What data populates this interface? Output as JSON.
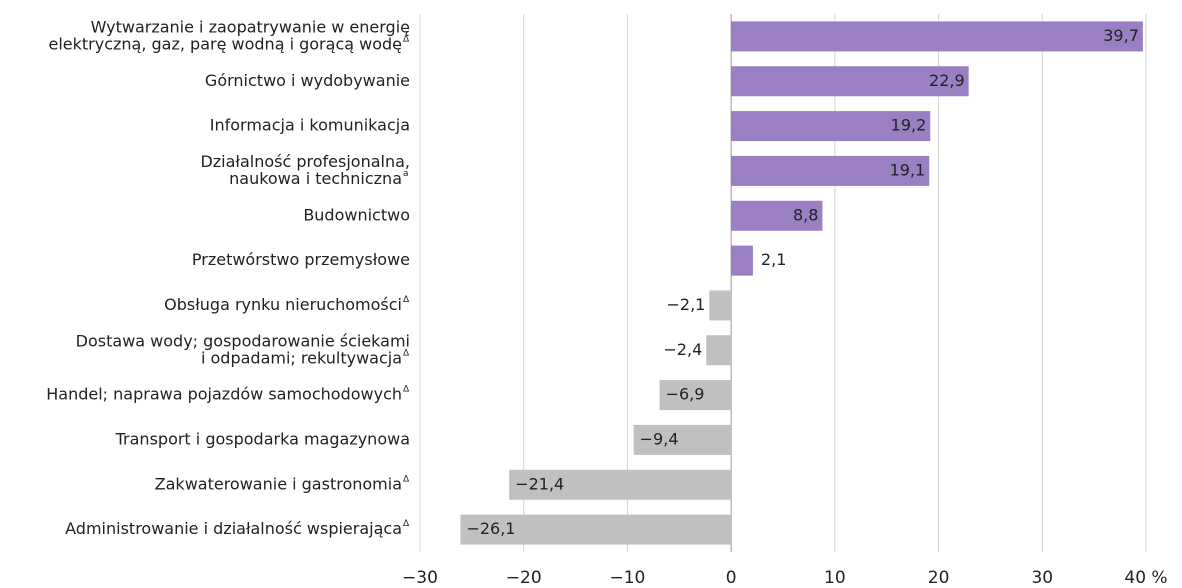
{
  "chart_data": {
    "type": "hbar",
    "categories": [
      [
        "Wytwarzanie i zaopatrywanie w energię",
        "elektryczną, gaz, parę wodną i gorącą wodę"
      ],
      [
        "Górnictwo i wydobywanie"
      ],
      [
        "Informacja i komunikacja"
      ],
      [
        "Działalność profesjonalna,",
        "naukowa i techniczna"
      ],
      [
        "Budownictwo"
      ],
      [
        "Przetwórstwo przemysłowe"
      ],
      [
        "Obsługa rynku nieruchomości"
      ],
      [
        "Dostawa wody; gospodarowanie ściekami",
        "i odpadami; rekultywacja"
      ],
      [
        "Handel; naprawa pojazdów samochodowych"
      ],
      [
        "Transport i gospodarka magazynowa"
      ],
      [
        "Zakwaterowanie i gastronomia"
      ],
      [
        "Administrowanie i działalność wspierająca"
      ]
    ],
    "category_markers": [
      "Δ",
      null,
      null,
      "a",
      null,
      null,
      "Δ",
      "Δ",
      "Δ",
      null,
      "Δ",
      "Δ"
    ],
    "values": [
      39.7,
      22.9,
      19.2,
      19.1,
      8.8,
      2.1,
      -2.1,
      -2.4,
      -6.9,
      -9.4,
      -21.4,
      -26.1
    ],
    "value_labels": [
      "39,7",
      "22,9",
      "19,2",
      "19,1",
      "8,8",
      "2,1",
      "−2,1",
      "−2,4",
      "−6,9",
      "−9,4",
      "−21,4",
      "−26,1"
    ],
    "positive_color": "#9a7fc3",
    "negative_color": "#c0c0c0",
    "xlim": [
      -30,
      40
    ],
    "xticks": [
      {
        "value": -30,
        "label": "−30"
      },
      {
        "value": -20,
        "label": "−20"
      },
      {
        "value": -10,
        "label": "−10"
      },
      0,
      10,
      20,
      30,
      {
        "value": 40,
        "label": "40 %"
      }
    ],
    "grid": true
  }
}
